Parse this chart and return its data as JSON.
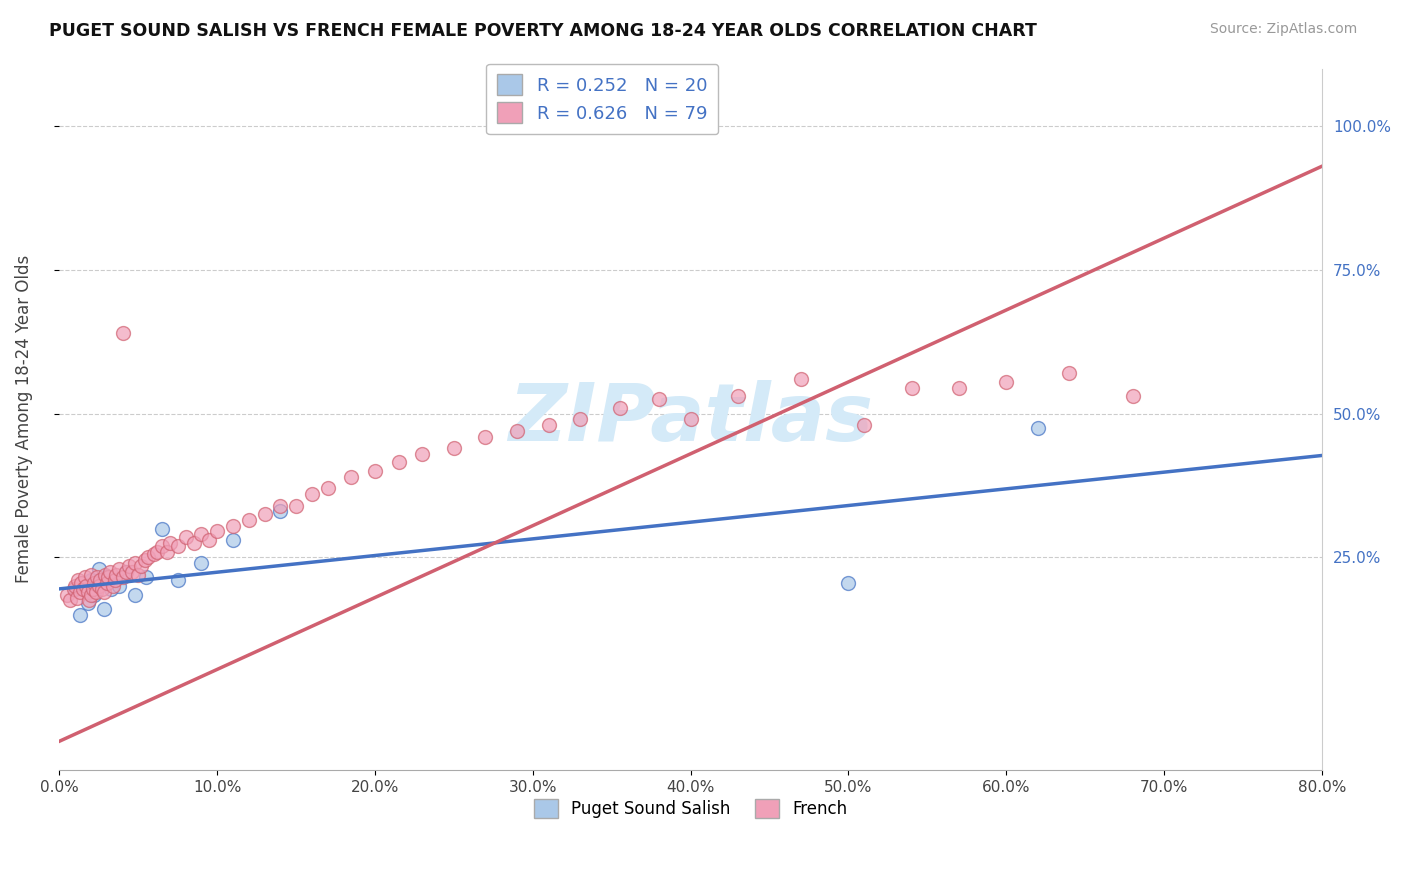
{
  "title": "PUGET SOUND SALISH VS FRENCH FEMALE POVERTY AMONG 18-24 YEAR OLDS CORRELATION CHART",
  "source": "Source: ZipAtlas.com",
  "ylabel": "Female Poverty Among 18-24 Year Olds",
  "xmin": 0.0,
  "xmax": 0.8,
  "ymin": -0.12,
  "ymax": 1.1,
  "puget_R": 0.252,
  "puget_N": 20,
  "french_R": 0.626,
  "french_N": 79,
  "puget_color": "#aac8e8",
  "french_color": "#f0a0b8",
  "puget_line_color": "#4472c4",
  "french_line_color": "#d06070",
  "watermark_color": "#d4eaf8",
  "puget_x": [
    0.01,
    0.013,
    0.018,
    0.02,
    0.022,
    0.025,
    0.028,
    0.03,
    0.033,
    0.038,
    0.042,
    0.048,
    0.055,
    0.065,
    0.075,
    0.09,
    0.11,
    0.14,
    0.5,
    0.62
  ],
  "puget_y": [
    0.195,
    0.15,
    0.17,
    0.21,
    0.185,
    0.23,
    0.16,
    0.215,
    0.195,
    0.2,
    0.225,
    0.185,
    0.215,
    0.3,
    0.21,
    0.24,
    0.28,
    0.33,
    0.205,
    0.475
  ],
  "french_x": [
    0.005,
    0.007,
    0.009,
    0.01,
    0.011,
    0.012,
    0.013,
    0.014,
    0.015,
    0.016,
    0.017,
    0.018,
    0.019,
    0.02,
    0.02,
    0.021,
    0.022,
    0.023,
    0.024,
    0.025,
    0.026,
    0.027,
    0.028,
    0.029,
    0.03,
    0.031,
    0.032,
    0.034,
    0.035,
    0.036,
    0.038,
    0.04,
    0.04,
    0.042,
    0.044,
    0.046,
    0.048,
    0.05,
    0.052,
    0.054,
    0.056,
    0.06,
    0.062,
    0.065,
    0.068,
    0.07,
    0.075,
    0.08,
    0.085,
    0.09,
    0.095,
    0.1,
    0.11,
    0.12,
    0.13,
    0.14,
    0.15,
    0.16,
    0.17,
    0.185,
    0.2,
    0.215,
    0.23,
    0.25,
    0.27,
    0.29,
    0.31,
    0.33,
    0.355,
    0.38,
    0.4,
    0.43,
    0.47,
    0.51,
    0.54,
    0.57,
    0.6,
    0.64,
    0.68
  ],
  "french_y": [
    0.185,
    0.175,
    0.195,
    0.2,
    0.18,
    0.21,
    0.19,
    0.205,
    0.195,
    0.215,
    0.2,
    0.19,
    0.175,
    0.185,
    0.22,
    0.195,
    0.205,
    0.19,
    0.215,
    0.2,
    0.21,
    0.195,
    0.19,
    0.22,
    0.205,
    0.215,
    0.225,
    0.2,
    0.21,
    0.22,
    0.23,
    0.215,
    0.64,
    0.225,
    0.235,
    0.225,
    0.24,
    0.22,
    0.235,
    0.245,
    0.25,
    0.255,
    0.26,
    0.27,
    0.26,
    0.275,
    0.27,
    0.285,
    0.275,
    0.29,
    0.28,
    0.295,
    0.305,
    0.315,
    0.325,
    0.34,
    0.34,
    0.36,
    0.37,
    0.39,
    0.4,
    0.415,
    0.43,
    0.44,
    0.46,
    0.47,
    0.48,
    0.49,
    0.51,
    0.525,
    0.49,
    0.53,
    0.56,
    0.48,
    0.545,
    0.545,
    0.555,
    0.57,
    0.53
  ]
}
